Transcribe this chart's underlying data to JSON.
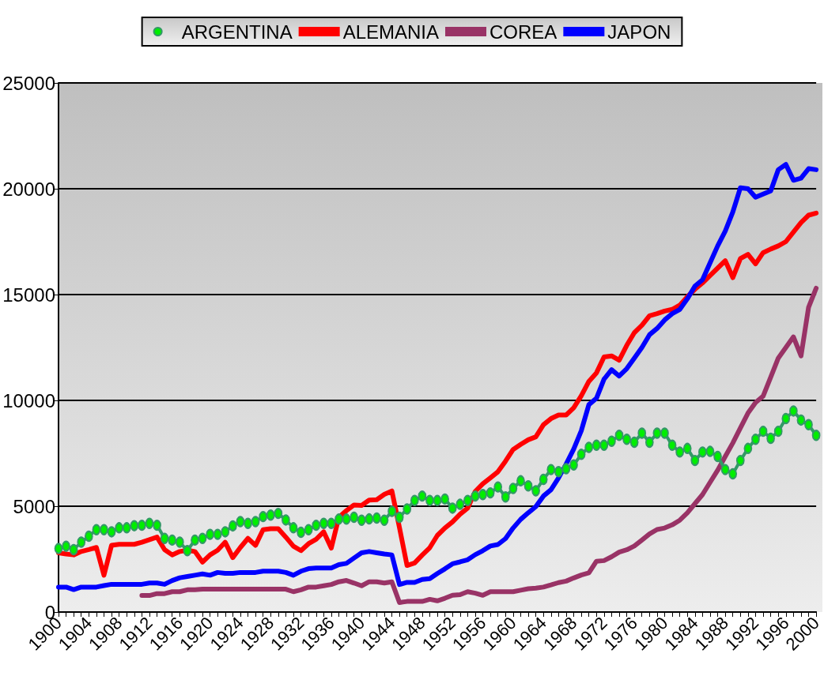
{
  "chart_data": {
    "type": "line",
    "categories": [
      "1900",
      null,
      null,
      null,
      "1904",
      null,
      null,
      null,
      "1908",
      null,
      null,
      null,
      "1912",
      null,
      null,
      null,
      "1916",
      null,
      null,
      null,
      "1920",
      null,
      null,
      null,
      "1924",
      null,
      null,
      null,
      "1928",
      null,
      null,
      null,
      "1932",
      null,
      null,
      null,
      "1936",
      null,
      null,
      null,
      "1940",
      null,
      null,
      null,
      "1944",
      null,
      null,
      null,
      "1948",
      null,
      null,
      null,
      "1952",
      null,
      null,
      null,
      "1956",
      null,
      null,
      null,
      "1960",
      null,
      null,
      null,
      "1964",
      null,
      null,
      null,
      "1968",
      null,
      null,
      null,
      "1972",
      null,
      null,
      null,
      "1976",
      null,
      null,
      null,
      "1980",
      null,
      null,
      null,
      "1984",
      null,
      null,
      null,
      "1988",
      null,
      null,
      null,
      "1992",
      null,
      null,
      null,
      "1996",
      null,
      null,
      null,
      "2000"
    ],
    "series": [
      {
        "name": "ARGENTINA",
        "color": "#339966",
        "marker": "circle",
        "values": [
          3000,
          3110,
          2950,
          3300,
          3580,
          3890,
          3890,
          3790,
          3980,
          3980,
          4080,
          4100,
          4190,
          4100,
          3480,
          3400,
          3300,
          2900,
          3400,
          3480,
          3670,
          3670,
          3790,
          4070,
          4270,
          4190,
          4270,
          4510,
          4580,
          4660,
          4350,
          3980,
          3770,
          3890,
          4100,
          4190,
          4190,
          4390,
          4390,
          4480,
          4340,
          4400,
          4440,
          4340,
          4760,
          4480,
          4870,
          5270,
          5480,
          5270,
          5270,
          5340,
          4910,
          5090,
          5270,
          5480,
          5550,
          5630,
          5910,
          5440,
          5840,
          6200,
          5960,
          5730,
          6270,
          6730,
          6630,
          6770,
          6950,
          7450,
          7780,
          7880,
          7880,
          8070,
          8350,
          8160,
          8020,
          8450,
          8020,
          8450,
          8450,
          7880,
          7560,
          7730,
          7160,
          7560,
          7590,
          7350,
          6730,
          6530,
          7160,
          7730,
          8160,
          8540,
          8210,
          8540,
          9140,
          9500,
          9070,
          8850,
          8350
        ]
      },
      {
        "name": "ALEMANIA",
        "color": "#ff0000",
        "marker": "none",
        "values": [
          2800,
          2740,
          2700,
          2860,
          2950,
          3050,
          1740,
          3150,
          3200,
          3200,
          3200,
          3300,
          3420,
          3540,
          2950,
          2700,
          2860,
          2920,
          2860,
          2360,
          2700,
          2920,
          3300,
          2570,
          3050,
          3480,
          3150,
          3890,
          3940,
          3940,
          3540,
          3110,
          2900,
          3230,
          3440,
          3790,
          3020,
          4480,
          4790,
          5060,
          5040,
          5290,
          5310,
          5560,
          5720,
          3990,
          2200,
          2320,
          2690,
          3040,
          3620,
          3970,
          4260,
          4620,
          4910,
          5700,
          6060,
          6340,
          6630,
          7130,
          7680,
          7920,
          8140,
          8280,
          8850,
          9140,
          9310,
          9310,
          9650,
          10220,
          10900,
          11300,
          12050,
          12100,
          11900,
          12600,
          13200,
          13550,
          14000,
          14100,
          14220,
          14300,
          14500,
          14900,
          15250,
          15550,
          15900,
          16250,
          16600,
          15800,
          16700,
          16900,
          16450,
          16980,
          17150,
          17300,
          17500,
          17950,
          18400,
          18750,
          18850
        ]
      },
      {
        "name": "COREA",
        "color": "#993366",
        "marker": "none",
        "values": [
          null,
          null,
          null,
          null,
          null,
          null,
          null,
          null,
          null,
          null,
          null,
          780,
          780,
          870,
          870,
          960,
          960,
          1050,
          1050,
          1080,
          1080,
          1080,
          1080,
          1080,
          1080,
          1080,
          1080,
          1080,
          1080,
          1080,
          1080,
          960,
          1050,
          1180,
          1180,
          1240,
          1300,
          1430,
          1490,
          1370,
          1240,
          1430,
          1430,
          1370,
          1430,
          450,
          500,
          500,
          500,
          600,
          530,
          650,
          790,
          820,
          960,
          890,
          790,
          960,
          960,
          960,
          960,
          1030,
          1100,
          1130,
          1180,
          1280,
          1390,
          1460,
          1610,
          1750,
          1850,
          2400,
          2430,
          2610,
          2830,
          2940,
          3120,
          3400,
          3690,
          3900,
          3970,
          4120,
          4340,
          4690,
          5120,
          5550,
          6130,
          6700,
          7350,
          7990,
          8700,
          9400,
          9900,
          10200,
          11100,
          12000,
          12500,
          13000,
          12100,
          14400,
          15300
        ]
      },
      {
        "name": "JAPON",
        "color": "#0000ff",
        "marker": "none",
        "values": [
          1180,
          1180,
          1060,
          1180,
          1180,
          1180,
          1250,
          1310,
          1310,
          1310,
          1310,
          1310,
          1370,
          1370,
          1310,
          1490,
          1620,
          1680,
          1740,
          1800,
          1740,
          1870,
          1830,
          1830,
          1870,
          1870,
          1870,
          1930,
          1930,
          1930,
          1870,
          1740,
          1930,
          2050,
          2080,
          2080,
          2080,
          2240,
          2300,
          2550,
          2800,
          2860,
          2800,
          2740,
          2700,
          1300,
          1400,
          1400,
          1540,
          1580,
          1820,
          2040,
          2280,
          2370,
          2470,
          2710,
          2900,
          3120,
          3190,
          3470,
          3970,
          4380,
          4690,
          4980,
          5480,
          5780,
          6340,
          6990,
          7700,
          8570,
          9800,
          10100,
          11000,
          11450,
          11150,
          11500,
          12000,
          12500,
          13100,
          13400,
          13800,
          14100,
          14300,
          14800,
          15400,
          15700,
          16500,
          17300,
          18000,
          18900,
          20050,
          20000,
          19600,
          19750,
          19900,
          20900,
          21150,
          20400,
          20500,
          20950,
          20900
        ]
      }
    ],
    "ylim": [
      0,
      25000
    ],
    "yticks": [
      0,
      5000,
      10000,
      15000,
      20000,
      25000
    ],
    "grid": "y",
    "legend": "top",
    "line_style": "solid"
  }
}
